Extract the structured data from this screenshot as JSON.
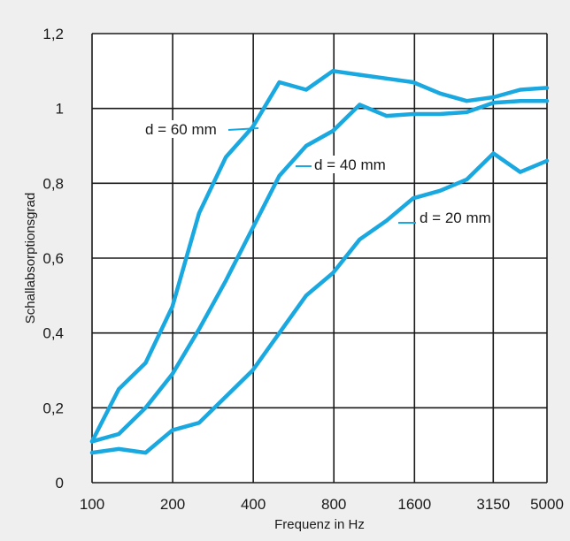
{
  "chart_data": {
    "type": "line",
    "title": "",
    "xlabel": "Frequenz in Hz",
    "ylabel": "Schallabsorptionsgrad",
    "x_tick_labels": [
      "100",
      "200",
      "400",
      "800",
      "1600",
      "3150",
      "5000"
    ],
    "y_tick_labels": [
      "0",
      "0,2",
      "0,4",
      "0,6",
      "0,8",
      "1",
      "1,2"
    ],
    "ylim": [
      0,
      1.2
    ],
    "x_scale": "third-octave bands",
    "x_bands": [
      100,
      125,
      160,
      200,
      250,
      315,
      400,
      500,
      630,
      800,
      1000,
      1250,
      1600,
      2000,
      2500,
      3150,
      4000,
      5000
    ],
    "grid": true,
    "line_color": "#19a8e0",
    "series": [
      {
        "name": "d = 60 mm",
        "values": [
          0.11,
          0.25,
          0.32,
          0.47,
          0.72,
          0.87,
          0.95,
          1.07,
          1.05,
          1.1,
          1.09,
          1.08,
          1.07,
          1.04,
          1.02,
          1.03,
          1.05,
          1.055
        ]
      },
      {
        "name": "d = 40 mm",
        "values": [
          0.11,
          0.13,
          0.2,
          0.29,
          0.41,
          0.54,
          0.68,
          0.82,
          0.9,
          0.94,
          1.01,
          0.98,
          0.985,
          0.985,
          0.99,
          1.015,
          1.02,
          1.02
        ]
      },
      {
        "name": "d = 20 mm",
        "values": [
          0.08,
          0.09,
          0.08,
          0.14,
          0.16,
          0.23,
          0.3,
          0.4,
          0.5,
          0.56,
          0.65,
          0.7,
          0.76,
          0.78,
          0.81,
          0.88,
          0.83,
          0.86
        ]
      }
    ]
  }
}
